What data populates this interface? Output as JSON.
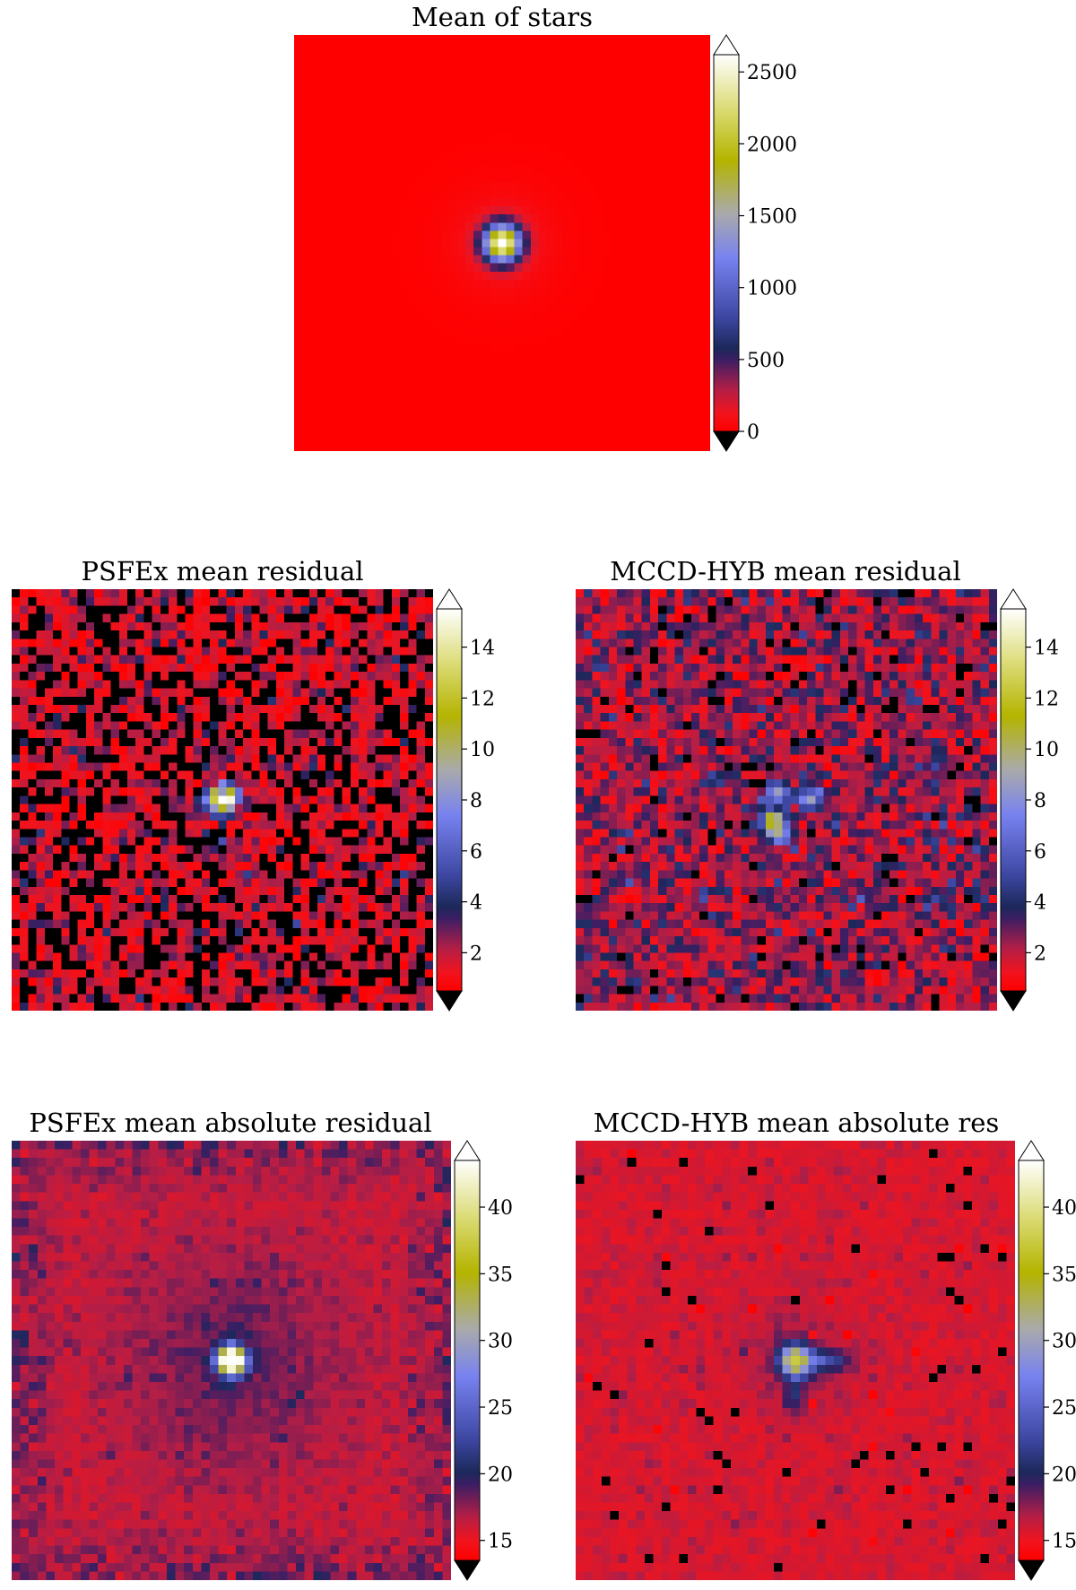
{
  "colormap": {
    "stops": [
      {
        "t": 0.0,
        "color": "#ff0000"
      },
      {
        "t": 0.05,
        "color": "#f0141e"
      },
      {
        "t": 0.11,
        "color": "#b41e46"
      },
      {
        "t": 0.19,
        "color": "#3c1e64"
      },
      {
        "t": 0.22,
        "color": "#1c285a"
      },
      {
        "t": 0.3,
        "color": "#3c46a0"
      },
      {
        "t": 0.46,
        "color": "#7882f0"
      },
      {
        "t": 0.58,
        "color": "#aaaaaa"
      },
      {
        "t": 0.72,
        "color": "#b4b400"
      },
      {
        "t": 0.86,
        "color": "#dcdc78"
      },
      {
        "t": 1.0,
        "color": "#ffffff"
      }
    ],
    "under_color": "#000000",
    "over_color": "#ffffff"
  },
  "chart_data": [
    {
      "type": "heatmap",
      "id": "mean-of-stars",
      "title": "Mean of stars",
      "grid_size": 51,
      "colorbar": {
        "range": [
          0,
          2620
        ],
        "ticks": [
          0,
          500,
          1000,
          1500,
          2000,
          2500
        ],
        "extend": "both"
      },
      "field": {
        "kind": "psf",
        "peak": 2600,
        "sigma": 1.6,
        "halo": 0.04,
        "halo_sigma": 5.0,
        "noise": 0,
        "seed": 11
      }
    },
    {
      "type": "heatmap",
      "id": "psfex-mean-residual",
      "title": "PSFEx mean residual",
      "grid_size": 51,
      "colorbar": {
        "range": [
          0.5,
          15.5
        ],
        "ticks": [
          2,
          4,
          6,
          8,
          10,
          12,
          14
        ],
        "extend": "both"
      },
      "field": {
        "kind": "residual-psfex",
        "base": 1.1,
        "noise": 1.2,
        "peak": 15,
        "seed": 23
      }
    },
    {
      "type": "heatmap",
      "id": "mccd-hyb-mean-residual",
      "title": "MCCD-HYB mean residual",
      "grid_size": 51,
      "colorbar": {
        "range": [
          0.5,
          15.5
        ],
        "ticks": [
          2,
          4,
          6,
          8,
          10,
          12,
          14
        ],
        "extend": "both"
      },
      "field": {
        "kind": "residual-mccd",
        "base": 2.3,
        "noise": 1.1,
        "peak": 7.5,
        "seed": 37
      }
    },
    {
      "type": "heatmap",
      "id": "psfex-mean-absolute-residual",
      "title": "PSFEx mean absolute residual",
      "grid_size": 51,
      "colorbar": {
        "range": [
          13.5,
          43.5
        ],
        "ticks": [
          15,
          20,
          25,
          30,
          35,
          40
        ],
        "extend": "both"
      },
      "field": {
        "kind": "abs-psfex",
        "base": 15.3,
        "noise": 0.9,
        "peak": 43,
        "seed": 41
      }
    },
    {
      "type": "heatmap",
      "id": "mccd-hyb-mean-absolute-res",
      "title": "MCCD-HYB mean absolute res",
      "grid_size": 51,
      "colorbar": {
        "range": [
          13.5,
          43.5
        ],
        "ticks": [
          15,
          20,
          25,
          30,
          35,
          40
        ],
        "extend": "both"
      },
      "field": {
        "kind": "abs-mccd",
        "base": 15.2,
        "noise": 0.8,
        "peak": 35,
        "seed": 53
      }
    }
  ]
}
